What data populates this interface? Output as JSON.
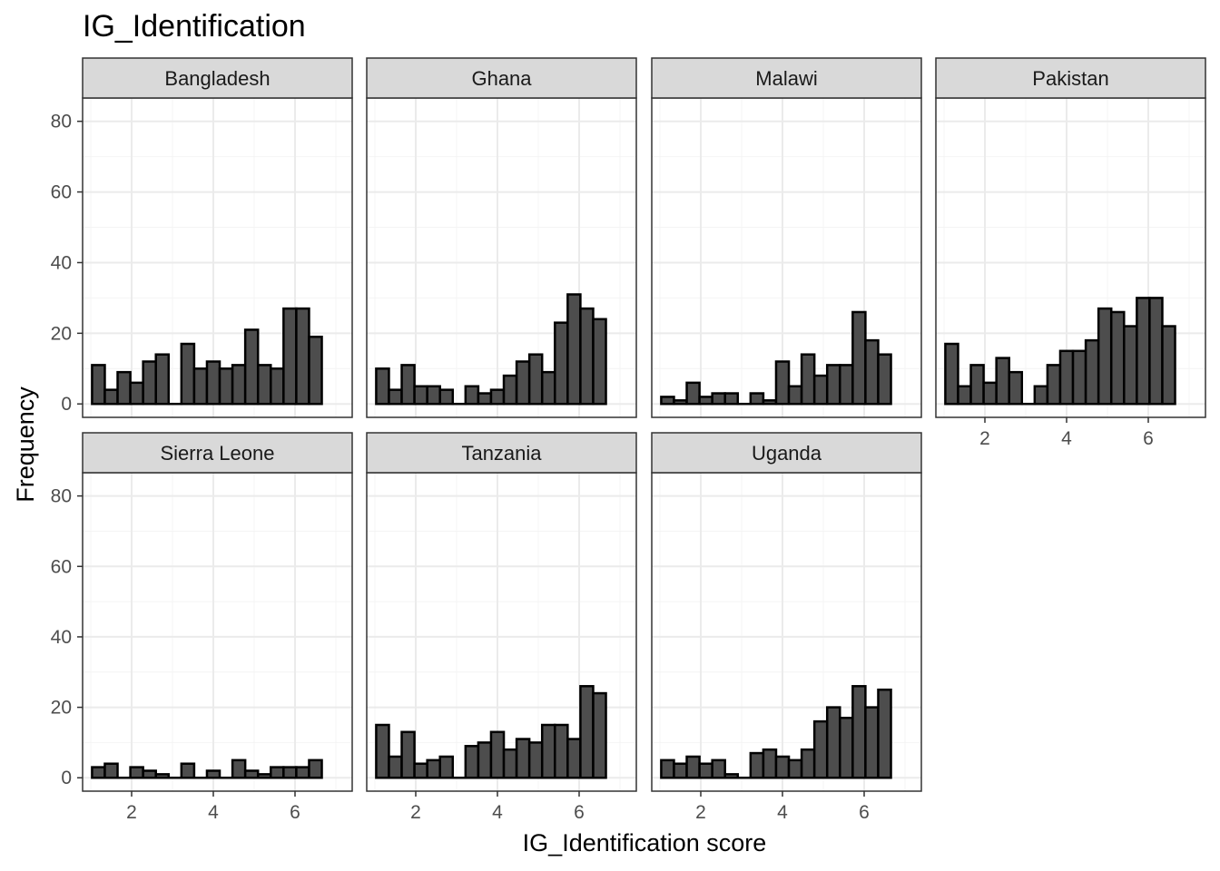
{
  "chart_data": {
    "type": "bar",
    "title": "IG_Identification",
    "xlabel": "IG_Identification score",
    "ylabel": "Frequency",
    "ylim": [
      0,
      80
    ],
    "yticks": [
      0,
      20,
      40,
      60,
      80
    ],
    "xlim": [
      0.8,
      7.4
    ],
    "xticks": [
      2,
      4,
      6
    ],
    "bin_width": 0.3125,
    "x_start": 1.1875,
    "bin_centers": [
      1.1875,
      1.5,
      1.8125,
      2.125,
      2.4375,
      2.75,
      3.0625,
      3.375,
      3.6875,
      4.0,
      4.3125,
      4.625,
      4.9375,
      5.25,
      5.5625,
      5.875,
      6.1875,
      6.5
    ],
    "grid": true,
    "colors": {
      "bar_fill": "#4d4d4d",
      "bar_stroke": "#000000",
      "strip_fill": "#d9d9d9",
      "grid_major": "#ebebeb",
      "grid_minor": "#f4f4f4",
      "panel_border": "#333333"
    },
    "series": [
      {
        "name": "Bangladesh",
        "values": [
          11,
          4,
          9,
          6,
          12,
          14,
          0,
          17,
          10,
          12,
          10,
          11,
          21,
          11,
          10,
          27,
          27,
          19
        ]
      },
      {
        "name": "Ghana",
        "values": [
          10,
          4,
          11,
          5,
          5,
          4,
          0,
          5,
          3,
          4,
          8,
          12,
          14,
          9,
          23,
          31,
          27,
          24
        ]
      },
      {
        "name": "Malawi",
        "values": [
          2,
          1,
          6,
          2,
          3,
          3,
          0,
          3,
          1,
          12,
          5,
          14,
          8,
          11,
          11,
          26,
          18,
          14
        ]
      },
      {
        "name": "Pakistan",
        "values": [
          17,
          5,
          11,
          6,
          13,
          9,
          0,
          5,
          11,
          15,
          15,
          18,
          27,
          26,
          22,
          30,
          30,
          22
        ]
      },
      {
        "name": "Sierra Leone",
        "values": [
          3,
          4,
          0,
          3,
          2,
          1,
          0,
          4,
          0,
          2,
          0,
          5,
          2,
          1,
          3,
          3,
          3,
          5
        ]
      },
      {
        "name": "Tanzania",
        "values": [
          15,
          6,
          13,
          4,
          5,
          6,
          0,
          9,
          10,
          13,
          8,
          11,
          10,
          15,
          15,
          11,
          26,
          24
        ]
      },
      {
        "name": "Uganda",
        "values": [
          5,
          4,
          6,
          4,
          5,
          1,
          0,
          7,
          8,
          6,
          5,
          8,
          16,
          20,
          17,
          26,
          20,
          25
        ]
      }
    ]
  }
}
